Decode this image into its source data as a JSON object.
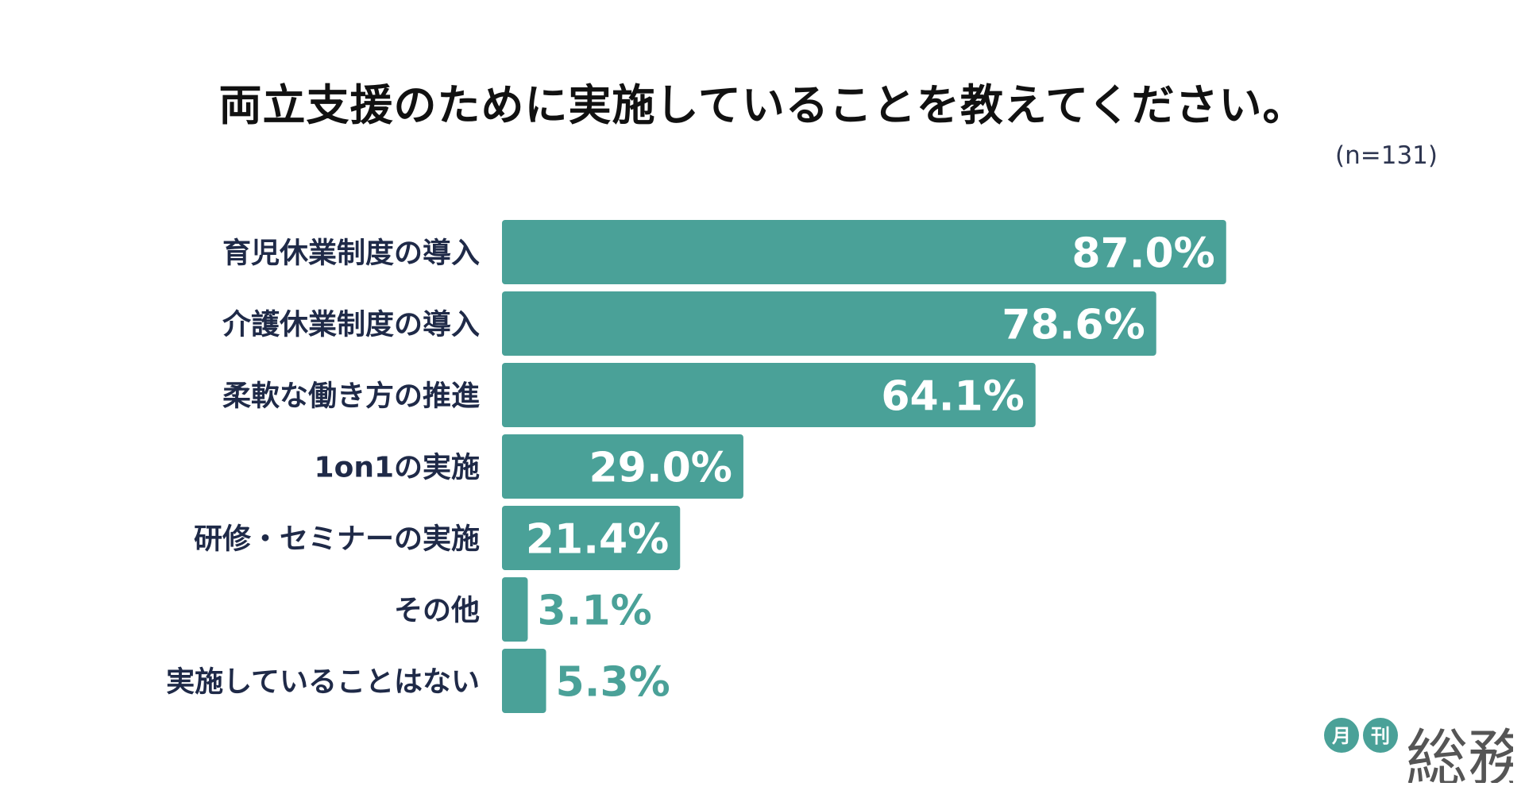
{
  "title": "両立支援のために実施していることを教えてください。",
  "sample_size": "(n=131)",
  "logo": {
    "circle_1": "月",
    "circle_2": "刊",
    "wordmark": "総務"
  },
  "colors": {
    "bar": "#4aa198",
    "label_text": "#1f2a48",
    "value_inside": "#ffffff",
    "value_outside": "#4aa198",
    "logo_circle": "#4aa198",
    "logo_text": "#555555"
  },
  "chart_data": {
    "type": "bar",
    "orientation": "horizontal",
    "categories": [
      "育児休業制度の導入",
      "介護休業制度の導入",
      "柔軟な働き方の推進",
      "1on1の実施",
      "研修・セミナーの実施",
      "その他",
      "実施していることはない"
    ],
    "values": [
      87.0,
      78.6,
      64.1,
      29.0,
      21.4,
      3.1,
      5.3
    ],
    "value_labels": [
      "87.0%",
      "78.6%",
      "64.1%",
      "29.0%",
      "21.4%",
      "3.1%",
      "5.3%"
    ],
    "unit": "%",
    "xlim": [
      0,
      100
    ],
    "grid": false,
    "legend": "none"
  }
}
